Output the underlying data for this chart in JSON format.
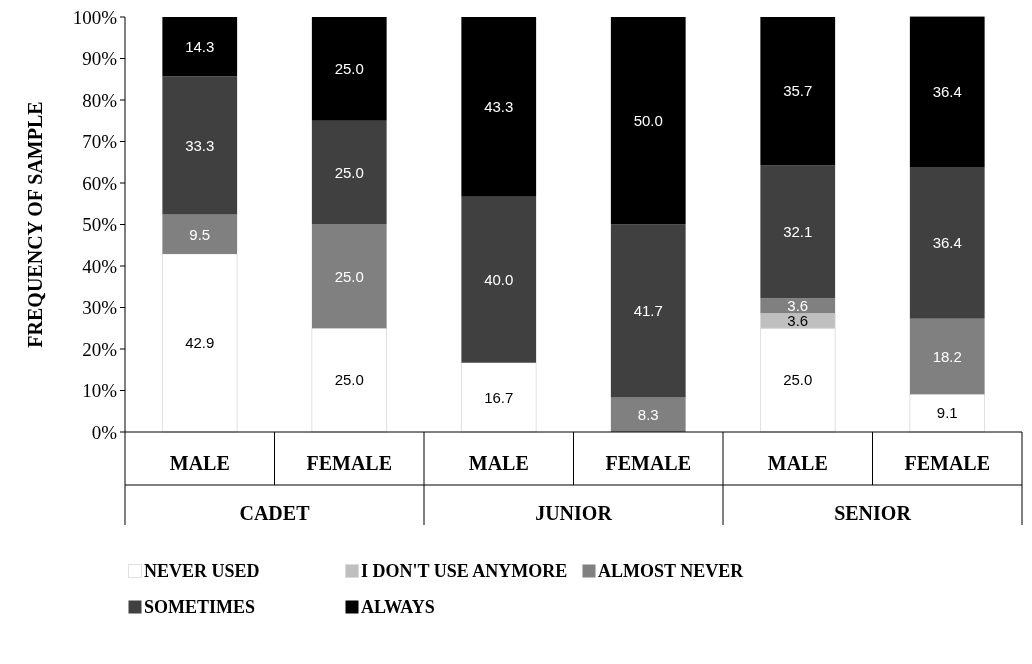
{
  "chart_data": {
    "type": "bar",
    "stacked": true,
    "ylabel": "FREQUENCY OF SAMPLE",
    "categories": [
      "MALE",
      "FEMALE",
      "MALE",
      "FEMALE",
      "MALE",
      "FEMALE"
    ],
    "annotations": [
      "CADET",
      "JUNIOR",
      "SENIOR"
    ],
    "ylim": [
      0,
      100
    ],
    "yticks": [
      {
        "value": 0,
        "label": "0%"
      },
      {
        "value": 10,
        "label": "10%"
      },
      {
        "value": 20,
        "label": "20%"
      },
      {
        "value": 30,
        "label": "30%"
      },
      {
        "value": 40,
        "label": "40%"
      },
      {
        "value": 50,
        "label": "50%"
      },
      {
        "value": 60,
        "label": "60%"
      },
      {
        "value": 70,
        "label": "70%"
      },
      {
        "value": 80,
        "label": "80%"
      },
      {
        "value": 90,
        "label": "90%"
      },
      {
        "value": 100,
        "label": "100%"
      }
    ],
    "grid": false,
    "legend": "bottom",
    "series": [
      {
        "name": "NEVER USED",
        "color": "#ffffff",
        "values": [
          42.9,
          25.0,
          16.7,
          null,
          25.0,
          9.1
        ],
        "value_labels": [
          "42.9",
          "25.0",
          "16.7",
          null,
          "25.0",
          "9.1"
        ]
      },
      {
        "name": "I DON'T USE ANYMORE",
        "color": "#bfbfbf",
        "values": [
          null,
          null,
          null,
          null,
          3.6,
          null
        ],
        "value_labels": [
          null,
          null,
          null,
          null,
          "3.6",
          null
        ]
      },
      {
        "name": "ALMOST NEVER",
        "color": "#808080",
        "values": [
          9.5,
          25.0,
          null,
          8.3,
          3.6,
          18.2
        ],
        "value_labels": [
          "9.5",
          "25.0",
          null,
          "8.3",
          "3.6",
          "18.2"
        ]
      },
      {
        "name": "SOMETIMES",
        "color": "#404040",
        "values": [
          33.3,
          25.0,
          40.0,
          41.7,
          32.1,
          36.4
        ],
        "value_labels": [
          "33.3",
          "25.0",
          "40.0",
          "41.7",
          "32.1",
          "36.4"
        ]
      },
      {
        "name": "ALWAYS",
        "color": "#000000",
        "values": [
          14.3,
          25.0,
          43.3,
          50.0,
          35.7,
          36.4
        ],
        "value_labels": [
          "14.3",
          "25.0",
          "43.3",
          "50.0",
          "35.7",
          "36.4"
        ]
      }
    ]
  }
}
